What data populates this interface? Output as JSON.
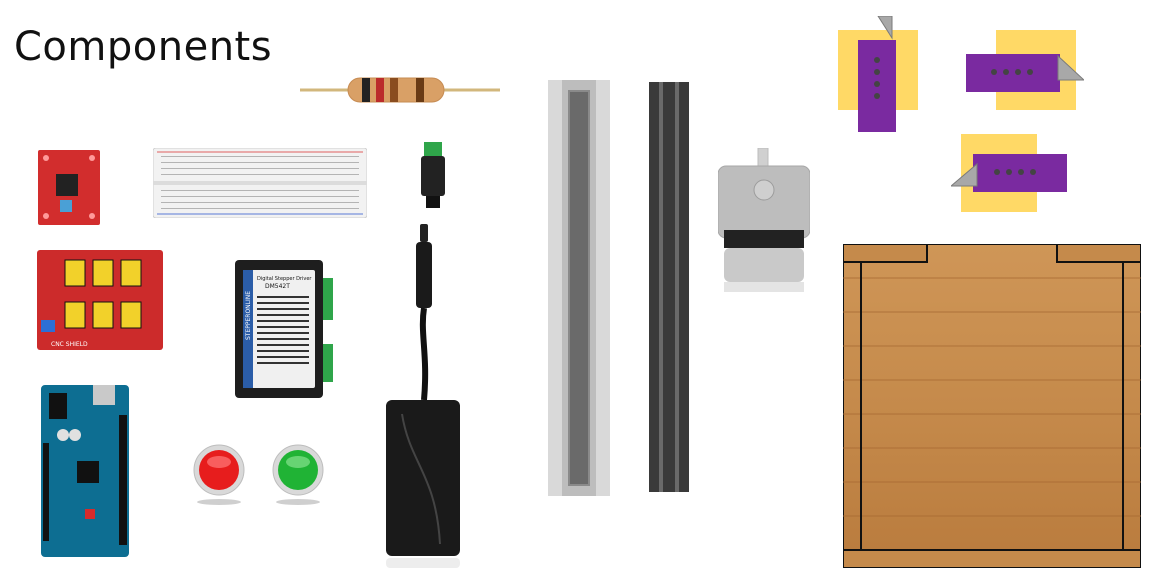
{
  "page": {
    "title": "Components"
  },
  "labels": {
    "driver_brand": "STEPPERONLINE",
    "driver_subtitle": "Digital Stepper Driver",
    "driver_model": "DM542T",
    "cnc_shield_label": "CNC SHIELD"
  },
  "colors": {
    "background": "#ffffff",
    "wood": "#c98a4b",
    "wood_dark": "#a86a33",
    "purple": "#7a2aa0",
    "yellow": "#ffd966",
    "arduino_blue": "#0d6e92",
    "shield_red": "#cc2b2b",
    "button_red": "#e71d1d",
    "button_green": "#20b335",
    "rail_gray": "#d9d9d9",
    "bar_dark": "#3a3a3a"
  },
  "components": [
    {
      "name": "resistor-icon"
    },
    {
      "name": "stepper-driver-module-icon"
    },
    {
      "name": "breadboard-icon"
    },
    {
      "name": "dc-barrel-jack-icon"
    },
    {
      "name": "cnc-shield-icon"
    },
    {
      "name": "stepper-driver-dm542t-icon"
    },
    {
      "name": "power-adapter-icon"
    },
    {
      "name": "arduino-mega-icon"
    },
    {
      "name": "red-button-icon"
    },
    {
      "name": "green-button-icon"
    },
    {
      "name": "linear-rail-icon"
    },
    {
      "name": "dark-bar-icon"
    },
    {
      "name": "nema17-stepper-motor-icon"
    },
    {
      "name": "limit-switch-icon"
    },
    {
      "name": "wooden-frame-icon"
    }
  ]
}
